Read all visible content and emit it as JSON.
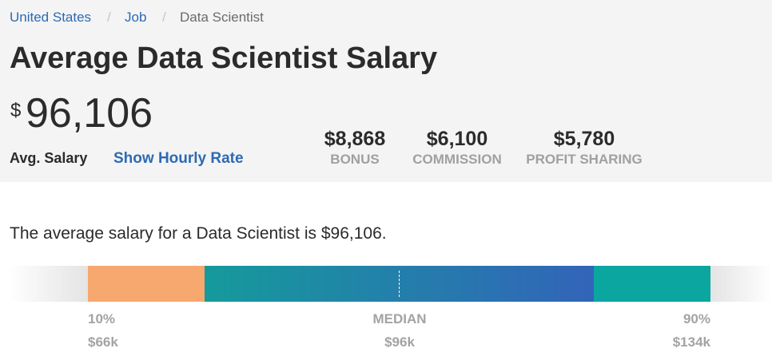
{
  "breadcrumb": [
    "United States",
    "Job",
    "Data Scientist"
  ],
  "header": {
    "title": "Average Data Scientist Salary",
    "currency": "$",
    "amount": "96,106",
    "amount_label": "Avg. Salary",
    "hourly_link": "Show Hourly Rate"
  },
  "extras": [
    {
      "value": "$8,868",
      "label": "BONUS"
    },
    {
      "value": "$6,100",
      "label": "COMMISSION"
    },
    {
      "value": "$5,780",
      "label": "PROFIT SHARING"
    }
  ],
  "description": "The average salary for a Data Scientist is $96,106.",
  "range": [
    {
      "label": "10%",
      "value": "$66k"
    },
    {
      "label": "MEDIAN",
      "value": "$96k"
    },
    {
      "label": "90%",
      "value": "$134k"
    }
  ]
}
